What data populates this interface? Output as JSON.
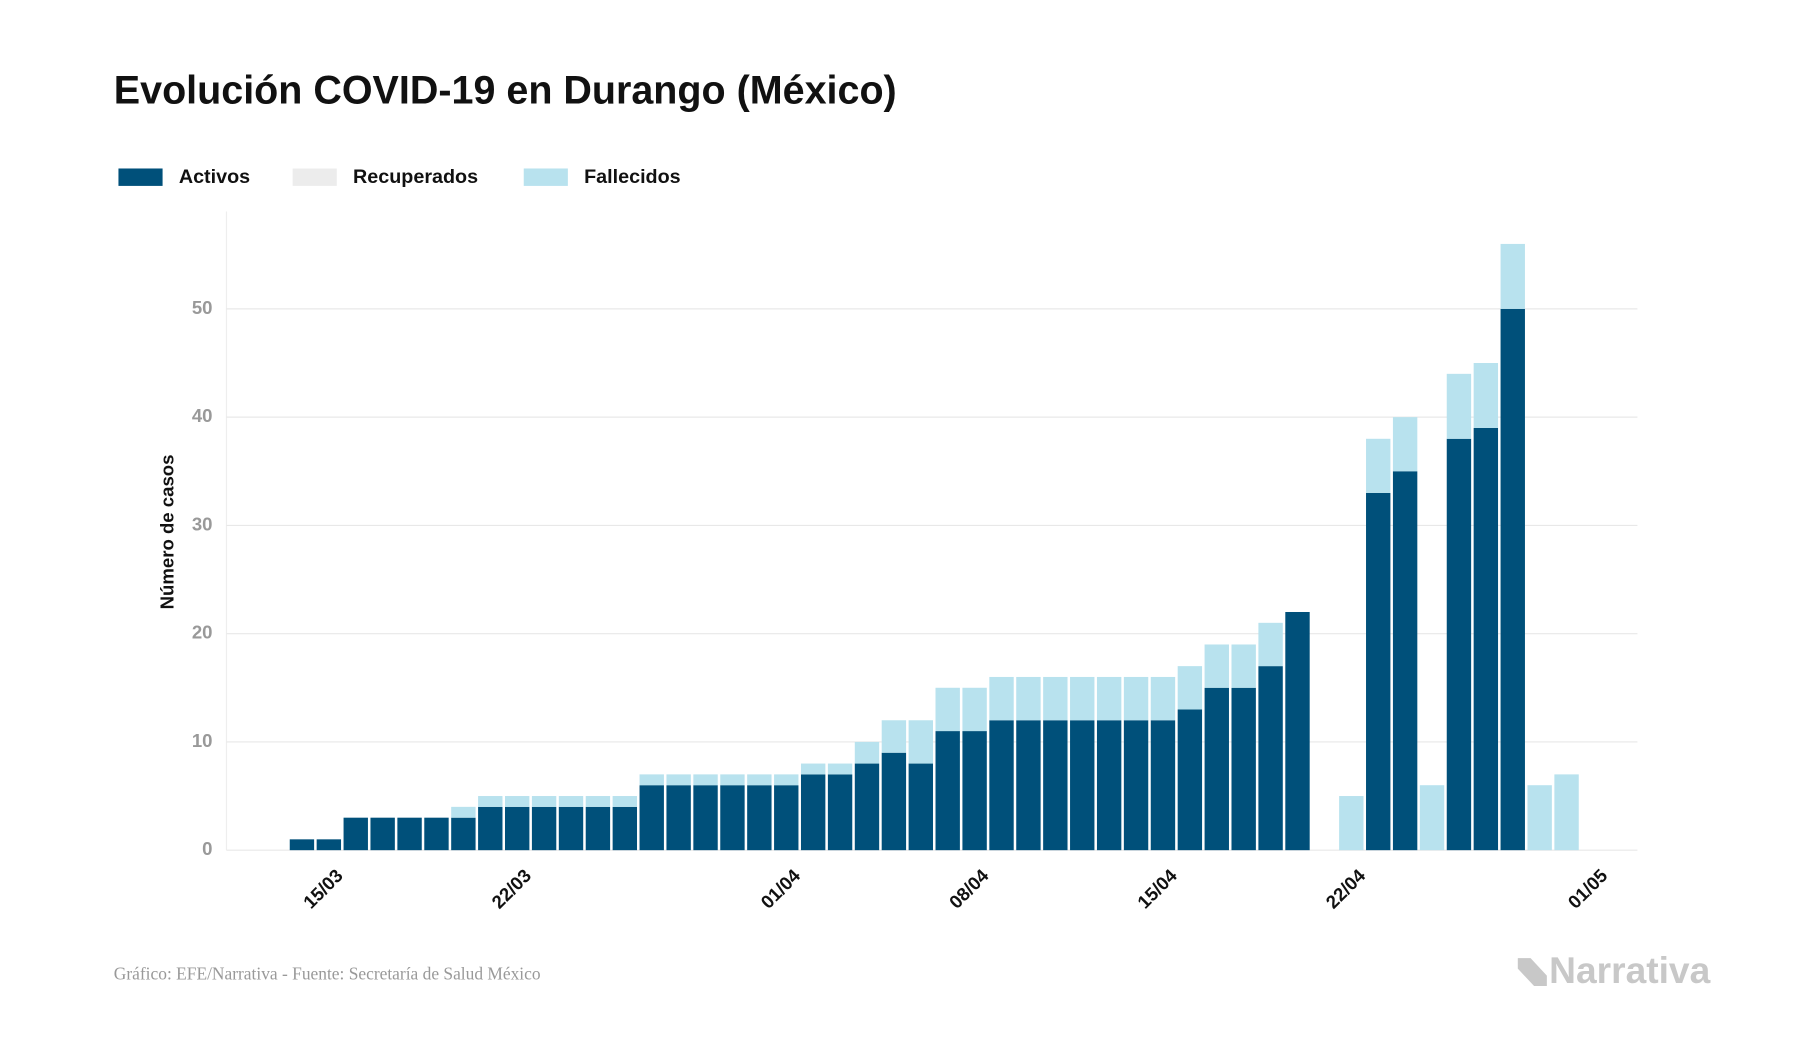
{
  "chart_data": {
    "type": "stacked_bar",
    "title": "Evolución COVID-19 en Durango (México)",
    "y_label": "Número de casos",
    "source": "Gráfico: EFE/Narrativa - Fuente: Secretaría de Salud México",
    "brand": "Narrativa",
    "categories": [
      null,
      "15/03",
      null,
      null,
      null,
      null,
      null,
      null,
      "22/03",
      null,
      null,
      null,
      null,
      null,
      null,
      null,
      null,
      null,
      "01/04",
      null,
      null,
      null,
      null,
      null,
      null,
      "08/04",
      null,
      null,
      null,
      null,
      null,
      null,
      "15/04",
      null,
      null,
      null,
      null,
      null,
      null,
      "22/04",
      null,
      null,
      null,
      null,
      null,
      null,
      null,
      null,
      "01/05"
    ],
    "series": [
      {
        "name": "Activos",
        "color": "#00507a",
        "values": [
          1,
          1,
          3,
          3,
          3,
          3,
          3,
          4,
          4,
          4,
          4,
          4,
          4,
          6,
          6,
          6,
          6,
          6,
          6,
          7,
          7,
          8,
          9,
          8,
          11,
          11,
          12,
          12,
          12,
          12,
          12,
          12,
          12,
          13,
          15,
          15,
          17,
          22,
          null,
          0,
          33,
          35,
          0,
          38,
          39,
          50,
          0,
          0,
          null
        ]
      },
      {
        "name": "Recuperados",
        "color": "#ececec",
        "values": [
          0,
          0,
          0,
          0,
          0,
          0,
          0,
          0,
          0,
          0,
          0,
          0,
          0,
          0,
          0,
          0,
          0,
          0,
          0,
          0,
          0,
          0,
          0,
          0,
          0,
          0,
          0,
          0,
          0,
          0,
          0,
          0,
          0,
          0,
          0,
          0,
          0,
          0,
          null,
          0,
          0,
          0,
          0,
          0,
          0,
          0,
          0,
          0,
          null
        ]
      },
      {
        "name": "Fallecidos",
        "color": "#b8e2ee",
        "values": [
          0,
          0,
          0,
          0,
          0,
          0,
          1,
          1,
          1,
          1,
          1,
          1,
          1,
          1,
          1,
          1,
          1,
          1,
          1,
          1,
          1,
          2,
          3,
          4,
          4,
          4,
          4,
          4,
          4,
          4,
          4,
          4,
          4,
          4,
          4,
          4,
          4,
          0,
          null,
          5,
          5,
          5,
          6,
          6,
          6,
          6,
          6,
          7,
          null
        ]
      }
    ],
    "ylim": [
      0,
      59
    ],
    "yticks": [
      0,
      10,
      20,
      30,
      40,
      50
    ],
    "grid": true,
    "legend": "top-left"
  }
}
